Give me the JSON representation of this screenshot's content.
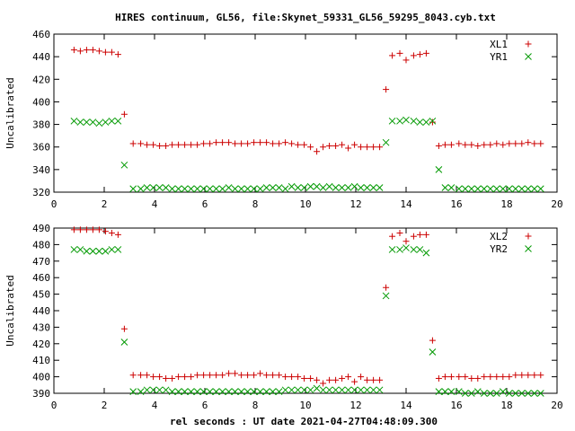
{
  "chart_data": {
    "type": "scatter",
    "title": "HIRES continuum, GL56, file:Skynet_59331_GL56_59295_8043.cyb.txt",
    "xlabel": "rel seconds : UT date 2021-04-27T04:48:09.300",
    "colors": {
      "XL": "#cc0000",
      "YR": "#009900"
    },
    "panels": [
      {
        "ylabel": "Uncalibrated",
        "xlim": [
          0,
          20
        ],
        "ylim": [
          320,
          460
        ],
        "xticks": [
          0,
          2,
          4,
          6,
          8,
          10,
          12,
          14,
          16,
          18,
          20
        ],
        "yticks": [
          320,
          340,
          360,
          380,
          400,
          420,
          440,
          460
        ],
        "legend_position": "top-right",
        "series": [
          {
            "name": "XL1",
            "marker": "plus",
            "color": "#cc0000",
            "x": [
              0.8,
              1.05,
              1.3,
              1.55,
              1.8,
              2.05,
              2.3,
              2.55,
              2.8,
              3.15,
              3.45,
              3.7,
              3.95,
              4.2,
              4.45,
              4.7,
              4.95,
              5.2,
              5.45,
              5.7,
              5.95,
              6.2,
              6.45,
              6.7,
              6.95,
              7.2,
              7.45,
              7.7,
              7.95,
              8.2,
              8.45,
              8.7,
              8.95,
              9.2,
              9.45,
              9.7,
              9.95,
              10.2,
              10.45,
              10.7,
              10.95,
              11.2,
              11.45,
              11.7,
              11.95,
              12.2,
              12.45,
              12.7,
              12.95,
              13.2,
              13.45,
              13.75,
              14.0,
              14.3,
              14.55,
              14.8,
              15.05,
              15.3,
              15.55,
              15.8,
              16.1,
              16.35,
              16.6,
              16.85,
              17.1,
              17.35,
              17.6,
              17.85,
              18.1,
              18.35,
              18.6,
              18.85,
              19.1,
              19.35
            ],
            "y": [
              446,
              445,
              446,
              446,
              445,
              444,
              444,
              442,
              389,
              363,
              363,
              362,
              362,
              361,
              361,
              362,
              362,
              362,
              362,
              362,
              363,
              363,
              364,
              364,
              364,
              363,
              363,
              363,
              364,
              364,
              364,
              363,
              363,
              364,
              363,
              362,
              362,
              360,
              356,
              360,
              361,
              361,
              362,
              359,
              362,
              360,
              360,
              360,
              360,
              411,
              441,
              443,
              437,
              441,
              442,
              443,
              382,
              361,
              362,
              362,
              363,
              362,
              362,
              361,
              362,
              362,
              363,
              362,
              363,
              363,
              363,
              364,
              363,
              363
            ]
          },
          {
            "name": "YR1",
            "marker": "cross",
            "color": "#009900",
            "x": [
              0.8,
              1.05,
              1.3,
              1.55,
              1.8,
              2.05,
              2.3,
              2.55,
              2.8,
              3.15,
              3.45,
              3.7,
              3.95,
              4.2,
              4.45,
              4.7,
              4.95,
              5.2,
              5.45,
              5.7,
              5.95,
              6.2,
              6.45,
              6.7,
              6.95,
              7.2,
              7.45,
              7.7,
              7.95,
              8.2,
              8.45,
              8.7,
              8.95,
              9.2,
              9.45,
              9.7,
              9.95,
              10.2,
              10.45,
              10.7,
              10.95,
              11.2,
              11.45,
              11.7,
              11.95,
              12.2,
              12.45,
              12.7,
              12.95,
              13.2,
              13.45,
              13.75,
              14.0,
              14.3,
              14.55,
              14.8,
              15.05,
              15.3,
              15.55,
              15.8,
              16.1,
              16.35,
              16.6,
              16.85,
              17.1,
              17.35,
              17.6,
              17.85,
              18.1,
              18.35,
              18.6,
              18.85,
              19.1,
              19.35
            ],
            "y": [
              383,
              382,
              382,
              382,
              381,
              382,
              383,
              383,
              344,
              323,
              323,
              324,
              324,
              324,
              324,
              323,
              323,
              323,
              323,
              323,
              323,
              323,
              323,
              323,
              324,
              323,
              323,
              323,
              323,
              323,
              324,
              324,
              324,
              323,
              325,
              324,
              324,
              325,
              325,
              324,
              325,
              324,
              324,
              324,
              325,
              324,
              324,
              324,
              324,
              364,
              383,
              383,
              384,
              383,
              382,
              382,
              383,
              340,
              324,
              324,
              323,
              323,
              323,
              323,
              323,
              323,
              323,
              323,
              323,
              323,
              323,
              323,
              323,
              323
            ]
          }
        ]
      },
      {
        "ylabel": "Uncalibrated",
        "xlim": [
          0,
          20
        ],
        "ylim": [
          390,
          490
        ],
        "xticks": [
          0,
          2,
          4,
          6,
          8,
          10,
          12,
          14,
          16,
          18,
          20
        ],
        "yticks": [
          390,
          400,
          410,
          420,
          430,
          440,
          450,
          460,
          470,
          480,
          490
        ],
        "legend_position": "top-right",
        "series": [
          {
            "name": "XL2",
            "marker": "plus",
            "color": "#cc0000",
            "x": [
              0.8,
              1.05,
              1.3,
              1.55,
              1.8,
              2.05,
              2.3,
              2.55,
              2.8,
              3.15,
              3.45,
              3.7,
              3.95,
              4.2,
              4.45,
              4.7,
              4.95,
              5.2,
              5.45,
              5.7,
              5.95,
              6.2,
              6.45,
              6.7,
              6.95,
              7.2,
              7.45,
              7.7,
              7.95,
              8.2,
              8.45,
              8.7,
              8.95,
              9.2,
              9.45,
              9.7,
              9.95,
              10.2,
              10.45,
              10.7,
              10.95,
              11.2,
              11.45,
              11.7,
              11.95,
              12.2,
              12.45,
              12.7,
              12.95,
              13.2,
              13.45,
              13.75,
              14.0,
              14.3,
              14.55,
              14.8,
              15.05,
              15.3,
              15.55,
              15.8,
              16.1,
              16.35,
              16.6,
              16.85,
              17.1,
              17.35,
              17.6,
              17.85,
              18.1,
              18.35,
              18.6,
              18.85,
              19.1,
              19.35
            ],
            "y": [
              489,
              489,
              489,
              489,
              489,
              488,
              487,
              486,
              429,
              401,
              401,
              401,
              400,
              400,
              399,
              399,
              400,
              400,
              400,
              401,
              401,
              401,
              401,
              401,
              402,
              402,
              401,
              401,
              401,
              402,
              401,
              401,
              401,
              400,
              400,
              400,
              399,
              399,
              398,
              396,
              398,
              398,
              399,
              400,
              397,
              400,
              398,
              398,
              398,
              454,
              485,
              487,
              482,
              485,
              486,
              486,
              422,
              399,
              400,
              400,
              400,
              400,
              399,
              399,
              400,
              400,
              400,
              400,
              400,
              401,
              401,
              401,
              401,
              401
            ]
          },
          {
            "name": "YR2",
            "marker": "cross",
            "color": "#009900",
            "x": [
              0.8,
              1.05,
              1.3,
              1.55,
              1.8,
              2.05,
              2.3,
              2.55,
              2.8,
              3.15,
              3.45,
              3.7,
              3.95,
              4.2,
              4.45,
              4.7,
              4.95,
              5.2,
              5.45,
              5.7,
              5.95,
              6.2,
              6.45,
              6.7,
              6.95,
              7.2,
              7.45,
              7.7,
              7.95,
              8.2,
              8.45,
              8.7,
              8.95,
              9.2,
              9.45,
              9.7,
              9.95,
              10.2,
              10.45,
              10.7,
              10.95,
              11.2,
              11.45,
              11.7,
              11.95,
              12.2,
              12.45,
              12.7,
              12.95,
              13.2,
              13.45,
              13.75,
              14.0,
              14.3,
              14.55,
              14.8,
              15.05,
              15.3,
              15.55,
              15.8,
              16.1,
              16.35,
              16.6,
              16.85,
              17.1,
              17.35,
              17.6,
              17.85,
              18.1,
              18.35,
              18.6,
              18.85,
              19.1,
              19.35
            ],
            "y": [
              477,
              477,
              476,
              476,
              476,
              476,
              477,
              477,
              421,
              391,
              391,
              392,
              392,
              392,
              392,
              391,
              391,
              391,
              391,
              391,
              391,
              391,
              391,
              391,
              391,
              391,
              391,
              391,
              391,
              391,
              391,
              391,
              391,
              392,
              392,
              392,
              392,
              392,
              393,
              392,
              392,
              392,
              392,
              392,
              392,
              392,
              392,
              392,
              392,
              449,
              477,
              477,
              478,
              477,
              477,
              475,
              415,
              391,
              391,
              391,
              391,
              390,
              390,
              391,
              390,
              390,
              390,
              391,
              390,
              390,
              390,
              390,
              390,
              390
            ]
          }
        ]
      }
    ]
  }
}
